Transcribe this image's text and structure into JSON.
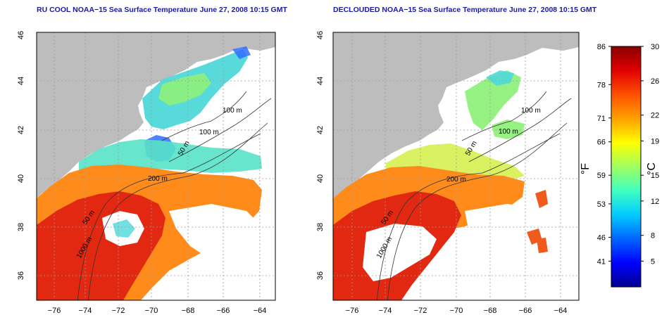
{
  "panels": [
    {
      "title": "RU COOL NOAA−15 Sea Surface Temperature June 27, 2008 10:15 GMT",
      "contour_labels": [
        "100 m",
        "100 m",
        "50 m",
        "200 m",
        "50 m",
        "1000 m"
      ]
    },
    {
      "title": "DECLOUDED NOAA−15 Sea Surface Temperature June 27, 2008 10:15 GMT",
      "contour_labels": [
        "100 m",
        "100 m",
        "50 m",
        "200 m",
        "50 m",
        "1000 m"
      ]
    }
  ],
  "map_axes": {
    "lon_ticks": [
      "−76",
      "−74",
      "−72",
      "−70",
      "−68",
      "−66",
      "−64"
    ],
    "lat_ticks": [
      "36",
      "38",
      "40",
      "42",
      "44",
      "46"
    ],
    "lon_range": [
      -77,
      -63
    ],
    "lat_range": [
      35,
      46
    ],
    "grid": "dotted",
    "land_color": "#bdbdbd",
    "no_data_color": "#ffffff"
  },
  "colorbar": {
    "fahrenheit_label": "°F",
    "celsius_label": "°C",
    "fahrenheit_ticks": [
      "86",
      "78",
      "71",
      "66",
      "59",
      "53",
      "46",
      "41"
    ],
    "celsius_ticks": [
      "30",
      "26",
      "22",
      "19",
      "15",
      "12",
      "8",
      "5"
    ],
    "range_c": [
      2,
      30
    ],
    "colors": [
      "#00008f",
      "#0000ff",
      "#0066ff",
      "#00ccff",
      "#40ffbf",
      "#a0ff60",
      "#ffff00",
      "#ffa000",
      "#ff5000",
      "#e00000",
      "#8a0000"
    ]
  }
}
